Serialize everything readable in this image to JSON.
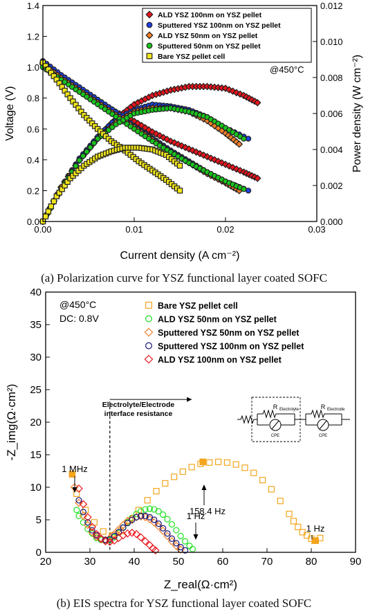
{
  "captions": {
    "a": "(a) Polarization curve for YSZ functional layer coated SOFC",
    "b": "(b) EIS spectra for YSZ functional layer coated SOFC"
  },
  "chart_data": [
    {
      "type": "line",
      "id": "polarization",
      "xlabel": "Current density (A cm⁻²)",
      "ylabel_left": "Voltage (V)",
      "ylabel_right": "Power density (W cm⁻²)",
      "xlim": [
        0,
        0.03
      ],
      "ylim_left": [
        0,
        1.4
      ],
      "ylim_right": [
        0,
        0.012
      ],
      "xticks": [
        "0.00",
        "0.01",
        "0.02",
        "0.03"
      ],
      "yticks_left": [
        "0.0",
        "0.2",
        "0.4",
        "0.6",
        "0.8",
        "1.0",
        "1.2",
        "1.4"
      ],
      "yticks_right": [
        "0.000",
        "0.002",
        "0.004",
        "0.006",
        "0.008",
        "0.010",
        "0.012"
      ],
      "annotation": "@450°C",
      "legend_position": "top-right",
      "series": [
        {
          "name": "ALD YSZ 100nm on YSZ pellet",
          "color": "#e8141b",
          "marker": "diamond",
          "filled": true,
          "x": [
            0.0,
            0.002,
            0.004,
            0.006,
            0.008,
            0.01,
            0.012,
            0.014,
            0.016,
            0.018,
            0.02,
            0.022,
            0.0235
          ],
          "voltage": [
            1.03,
            0.93,
            0.85,
            0.78,
            0.71,
            0.65,
            0.58,
            0.52,
            0.47,
            0.42,
            0.37,
            0.32,
            0.28
          ],
          "power": [
            0.0,
            0.0019,
            0.0034,
            0.0047,
            0.0057,
            0.0065,
            0.007,
            0.0073,
            0.0075,
            0.0075,
            0.0074,
            0.007,
            0.0066
          ]
        },
        {
          "name": "Sputtered YSZ 100nm on YSZ pellet",
          "color": "#1f3fe0",
          "marker": "circle",
          "filled": true,
          "x": [
            0.0,
            0.002,
            0.004,
            0.006,
            0.008,
            0.01,
            0.012,
            0.014,
            0.016,
            0.018,
            0.02,
            0.0225
          ],
          "voltage": [
            1.04,
            0.95,
            0.87,
            0.79,
            0.71,
            0.62,
            0.54,
            0.46,
            0.39,
            0.32,
            0.26,
            0.2
          ],
          "power": [
            0.0,
            0.0019,
            0.0035,
            0.0047,
            0.0057,
            0.0062,
            0.0065,
            0.0064,
            0.0062,
            0.0058,
            0.0052,
            0.0046
          ]
        },
        {
          "name": "ALD YSZ 50nm on YSZ pellet",
          "color": "#f07d28",
          "marker": "diamond",
          "filled": true,
          "x": [
            0.0,
            0.002,
            0.004,
            0.006,
            0.008,
            0.01,
            0.012,
            0.014,
            0.016,
            0.018,
            0.02,
            0.0215
          ],
          "voltage": [
            1.02,
            0.93,
            0.85,
            0.77,
            0.69,
            0.61,
            0.53,
            0.45,
            0.38,
            0.31,
            0.25,
            0.2
          ],
          "power": [
            0.0,
            0.0019,
            0.0034,
            0.0046,
            0.0055,
            0.0061,
            0.0063,
            0.0063,
            0.0061,
            0.0056,
            0.0049,
            0.0043
          ]
        },
        {
          "name": "Sputtered 50nm on YSZ pellet",
          "color": "#19c41c",
          "marker": "circle",
          "filled": true,
          "x": [
            0.0,
            0.002,
            0.004,
            0.006,
            0.008,
            0.01,
            0.012,
            0.014,
            0.016,
            0.018,
            0.02,
            0.022
          ],
          "voltage": [
            1.0,
            0.92,
            0.84,
            0.76,
            0.68,
            0.6,
            0.52,
            0.45,
            0.38,
            0.32,
            0.26,
            0.21
          ],
          "power": [
            0.0,
            0.0018,
            0.0034,
            0.0046,
            0.0054,
            0.006,
            0.0062,
            0.0063,
            0.0061,
            0.0058,
            0.0052,
            0.0046
          ]
        },
        {
          "name": "Bare YSZ pellet cell",
          "color": "#f2e61a",
          "marker": "square",
          "filled": true,
          "x": [
            0.0,
            0.0015,
            0.003,
            0.0045,
            0.006,
            0.0075,
            0.009,
            0.0105,
            0.012,
            0.0135,
            0.015
          ],
          "voltage": [
            1.03,
            0.92,
            0.8,
            0.69,
            0.6,
            0.52,
            0.46,
            0.39,
            0.33,
            0.27,
            0.2
          ],
          "power": [
            0.0,
            0.0014,
            0.0024,
            0.0031,
            0.0036,
            0.0039,
            0.0041,
            0.0041,
            0.004,
            0.0037,
            0.0031
          ]
        }
      ]
    },
    {
      "type": "scatter",
      "id": "eis",
      "xlabel": "Z_real(Ω·cm²)",
      "ylabel": "-Z_img(Ω·cm²)",
      "xlim": [
        20,
        90
      ],
      "ylim": [
        0,
        40
      ],
      "xticks": [
        "20",
        "30",
        "40",
        "50",
        "60",
        "70",
        "80",
        "90"
      ],
      "yticks": [
        "0",
        "5",
        "10",
        "15",
        "20",
        "25",
        "30",
        "35",
        "40"
      ],
      "annotation_temp": "@450°C",
      "annotation_dc": "DC: 0.8V",
      "legend_position": "top-right",
      "labels": {
        "mhz": "1 MHz",
        "hz158": "158.4 Hz",
        "hz1_mid": "1 Hz",
        "hz1_right": "1 Hz",
        "interface_line1": "Electrolyte/Electrode",
        "interface_line2": "interface resistance",
        "r_electrolyte": "R",
        "r_electrolyte_sub": "Electrolyte",
        "r_electrode": "R",
        "r_electrode_sub": "Electrode",
        "cpe": "CPE"
      },
      "series": [
        {
          "name": "Bare YSZ pellet cell",
          "color": "#f2a51e",
          "marker": "square",
          "x": [
            26,
            27,
            29,
            31,
            33,
            35,
            37,
            39,
            41,
            43,
            45,
            47,
            49,
            51,
            53,
            55,
            57,
            59,
            61,
            63,
            65,
            67,
            69,
            71,
            73,
            75,
            76,
            77,
            78,
            79,
            80,
            81,
            82
          ],
          "y": [
            12,
            9,
            6.5,
            4.6,
            3.2,
            2.6,
            3.3,
            4.9,
            6.5,
            8,
            9.4,
            10.6,
            11.6,
            12.4,
            13.1,
            13.6,
            13.8,
            13.9,
            13.8,
            13.5,
            13,
            12.2,
            11.1,
            9.7,
            7.9,
            5.9,
            4.8,
            3.9,
            3.1,
            2.6,
            2.1,
            1.8,
            2.2
          ]
        },
        {
          "name": "ALD YSZ 50nm on YSZ pellet",
          "color": "#1ee01e",
          "marker": "circle",
          "x": [
            27,
            27.5,
            28.5,
            29.5,
            30.5,
            31.5,
            32.5,
            33.5,
            34.5,
            35.5,
            36.5,
            37.5,
            38.5,
            39.5,
            40.5,
            41.5,
            42.5,
            43.5,
            44.5,
            45.5,
            46.5,
            47.5,
            48.5,
            49.5,
            50.5,
            51.5,
            52.5,
            53.2
          ],
          "y": [
            6.5,
            5.6,
            4.6,
            3.6,
            2.9,
            2.2,
            1.9,
            1.8,
            1.9,
            2.3,
            3,
            3.8,
            4.6,
            5.3,
            5.9,
            6.3,
            6.6,
            6.7,
            6.6,
            6.3,
            5.8,
            5.1,
            4.3,
            3.4,
            2.5,
            1.7,
            1.0,
            0.5
          ]
        },
        {
          "name": "Sputtered YSZ 50nm on YSZ pellet",
          "color": "#f07d28",
          "marker": "diamond",
          "x": [
            26.5,
            27.5,
            28.5,
            29.5,
            30.5,
            31.5,
            32.5,
            33.5,
            34.5,
            35.5,
            36.5,
            37.5,
            38.5,
            39.5,
            40.5,
            41.5,
            42.5,
            43.5,
            44.5,
            45.5,
            46.5,
            47.5,
            48.5,
            49.5,
            50.5
          ],
          "y": [
            10,
            7.6,
            5.6,
            4.2,
            3.1,
            2.4,
            2.0,
            1.9,
            2.2,
            2.8,
            3.5,
            4.2,
            4.8,
            5.2,
            5.4,
            5.5,
            5.4,
            5.1,
            4.6,
            4.0,
            3.3,
            2.5,
            1.7,
            1.0,
            0.4
          ]
        },
        {
          "name": "Sputtered YSZ 100nm on YSZ pellet",
          "color": "#14147a",
          "marker": "circle",
          "x": [
            27.5,
            28.5,
            29.5,
            30.5,
            31.5,
            32.5,
            33.5,
            34.5,
            35.5,
            36.5,
            37.5,
            38.5,
            39.5,
            40.5,
            41.5,
            42.5,
            43.5,
            44.5,
            45.5,
            46.5,
            47.5,
            48.5,
            49.5,
            50.5,
            51.5
          ],
          "y": [
            8.0,
            6.2,
            4.6,
            3.4,
            2.6,
            2.1,
            1.9,
            2.0,
            2.5,
            3.1,
            3.8,
            4.5,
            5.0,
            5.4,
            5.6,
            5.6,
            5.4,
            5.0,
            4.4,
            3.7,
            2.9,
            2.1,
            1.4,
            0.8,
            0.3
          ]
        },
        {
          "name": "ALD YSZ 100nm on YSZ pellet",
          "color": "#e8141b",
          "marker": "diamond",
          "x": [
            27.5,
            28.5,
            29.5,
            30.5,
            31.5,
            32.5,
            33.5,
            34.5,
            35.5,
            36.5,
            37.5,
            38.5,
            39.5,
            40.5,
            41.5,
            42.5,
            43.5,
            44.2,
            44.8
          ],
          "y": [
            9.8,
            7.4,
            5.4,
            3.9,
            2.8,
            2.1,
            1.7,
            1.6,
            1.8,
            2.2,
            2.6,
            2.9,
            3.0,
            2.8,
            2.3,
            1.7,
            1.1,
            0.6,
            0.3
          ]
        }
      ]
    }
  ]
}
